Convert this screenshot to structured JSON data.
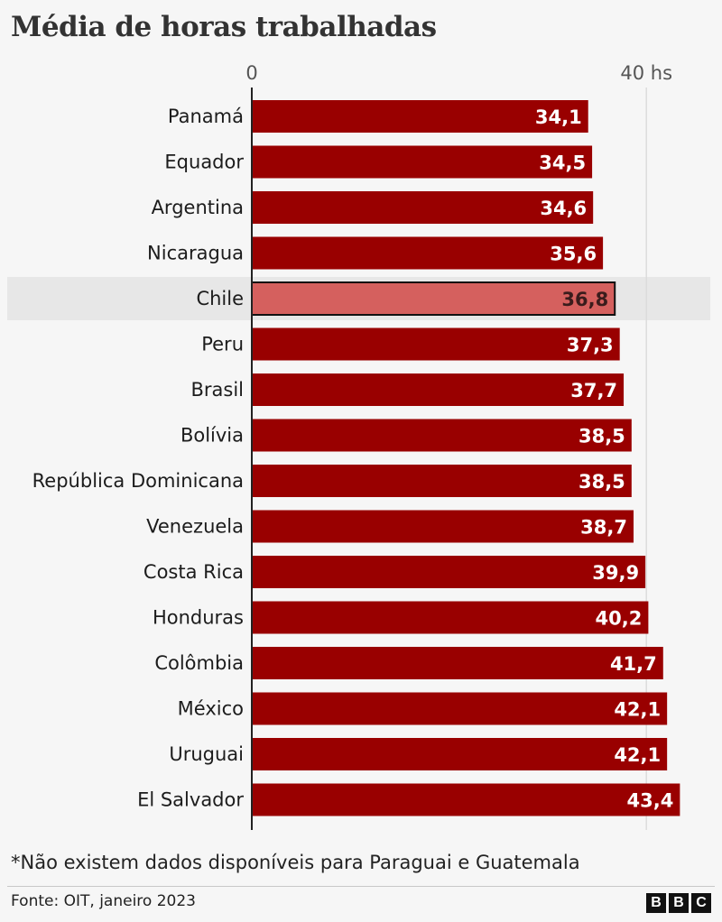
{
  "title": "Média de horas trabalhadas",
  "chart_data": {
    "type": "bar",
    "orientation": "horizontal",
    "xlim": [
      0,
      40
    ],
    "x_ticks": [
      {
        "value": 0,
        "label": "0"
      },
      {
        "value": 40,
        "label": "40 hs"
      }
    ],
    "grid": true,
    "categories": [
      "Panamá",
      "Equador",
      "Argentina",
      "Nicaragua",
      "Chile",
      "Peru",
      "Brasil",
      "Bolívia",
      "República Dominicana",
      "Venezuela",
      "Costa Rica",
      "Honduras",
      "Colômbia",
      "México",
      "Uruguai",
      "El Salvador"
    ],
    "values": [
      34.1,
      34.5,
      34.6,
      35.6,
      36.8,
      37.3,
      37.7,
      38.5,
      38.5,
      38.7,
      39.9,
      40.2,
      41.7,
      42.1,
      42.1,
      43.4
    ],
    "value_labels": [
      "34,1",
      "34,5",
      "34,6",
      "35,6",
      "36,8",
      "37,3",
      "37,7",
      "38,5",
      "38,5",
      "38,7",
      "39,9",
      "40,2",
      "41,7",
      "42,1",
      "42,1",
      "43,4"
    ],
    "highlight": "Chile",
    "colors": {
      "bar": "#990000",
      "highlight_bar": "#d5605e",
      "highlight_band": "#e7e7e7",
      "grid": "#dcdcdc",
      "axis": "#222222",
      "value_text": "#ffffff",
      "highlight_value_text": "#3a1c1c"
    }
  },
  "footnote": "*Não existem dados disponíveis para Paraguai e Guatemala",
  "source": "Fonte: OIT, janeiro 2023",
  "logo": [
    "B",
    "B",
    "C"
  ]
}
